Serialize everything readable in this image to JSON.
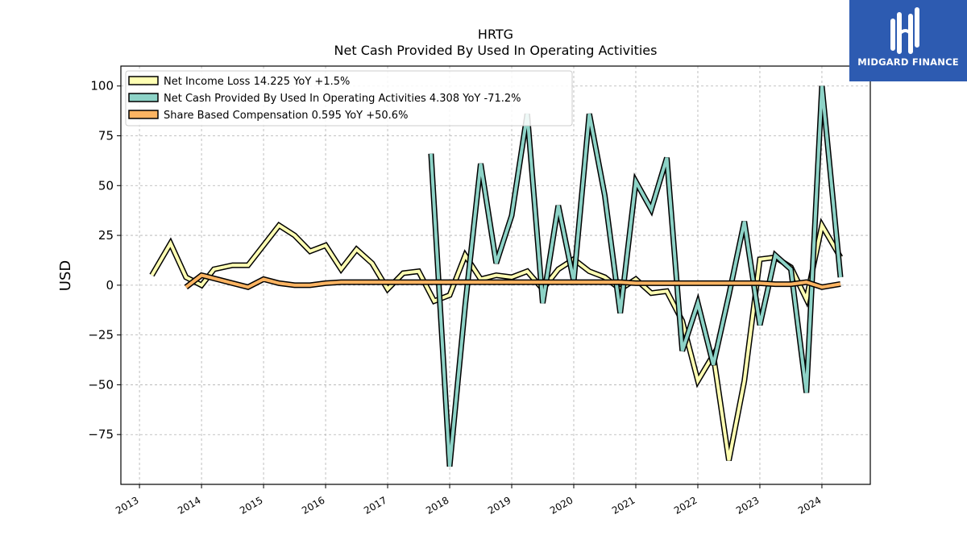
{
  "header": {
    "title": "HRTG",
    "subtitle": "Net Cash Provided By Used In Operating Activities"
  },
  "brand": {
    "name": "MIDGARD FINANCE",
    "icon": "midgard-logo-icon",
    "color": "#2d5bb1"
  },
  "chart_data": {
    "type": "line",
    "title": "HRTG",
    "subtitle": "Net Cash Provided By Used In Operating Activities",
    "xlabel": "",
    "ylabel": "USD",
    "xlim": [
      2012.7,
      2024.78
    ],
    "ylim": [
      -100,
      110
    ],
    "yticks": [
      100,
      75,
      50,
      25,
      0,
      -25,
      -50,
      -75
    ],
    "ytick_labels": [
      "100",
      "75",
      "50",
      "25",
      "0",
      "−25",
      "−50",
      "−75"
    ],
    "xticks": [
      2013,
      2014,
      2015,
      2016,
      2017,
      2018,
      2019,
      2020,
      2021,
      2022,
      2023,
      2024
    ],
    "xtick_labels": [
      "2013",
      "2014",
      "2015",
      "2016",
      "2017",
      "2018",
      "2019",
      "2020",
      "2021",
      "2022",
      "2023",
      "2024"
    ],
    "grid": true,
    "legend_position": "top-left",
    "series": [
      {
        "name": "Net Income Loss",
        "legend_label": "Net Income Loss  14.225 YoY +1.5%",
        "color": "#ffffb3",
        "x": [
          2013.2,
          2013.5,
          2013.75,
          2014.0,
          2014.2,
          2014.5,
          2014.75,
          2015.0,
          2015.25,
          2015.5,
          2015.75,
          2016.0,
          2016.25,
          2016.5,
          2016.75,
          2017.0,
          2017.25,
          2017.5,
          2017.75,
          2018.0,
          2018.25,
          2018.5,
          2018.75,
          2019.0,
          2019.25,
          2019.5,
          2019.75,
          2020.0,
          2020.25,
          2020.5,
          2020.75,
          2021.0,
          2021.25,
          2021.5,
          2021.75,
          2022.0,
          2022.25,
          2022.5,
          2022.75,
          2023.0,
          2023.25,
          2023.5,
          2023.75,
          2024.0,
          2024.3
        ],
        "y": [
          5,
          21,
          4,
          0,
          8,
          10,
          10,
          20,
          30,
          25,
          17,
          20,
          8,
          18,
          11,
          -2,
          6,
          7,
          -8,
          -5,
          15,
          3,
          5,
          4,
          7,
          -2,
          8,
          13,
          7,
          4,
          -2,
          3,
          -4,
          -3,
          -18,
          -48,
          -35,
          -88,
          -48,
          13,
          14,
          9,
          -7,
          30,
          14
        ]
      },
      {
        "name": "Net Cash Provided By Used In Operating Activities",
        "legend_label": "Net Cash Provided By Used In Operating Activities  4.308 YoY -71.2%",
        "color": "#8dd3c7",
        "x": [
          2017.7,
          2018.0,
          2018.25,
          2018.5,
          2018.75,
          2019.0,
          2019.25,
          2019.5,
          2019.75,
          2020.0,
          2020.25,
          2020.5,
          2020.75,
          2021.0,
          2021.25,
          2021.5,
          2021.75,
          2022.0,
          2022.25,
          2022.5,
          2022.75,
          2023.0,
          2023.25,
          2023.5,
          2023.75,
          2024.0,
          2024.3
        ],
        "y": [
          66,
          -91,
          -10,
          61,
          11,
          35,
          86,
          -9,
          40,
          2,
          86,
          45,
          -14,
          52,
          38,
          64,
          -33,
          -9,
          -40,
          -5,
          32,
          -20,
          15,
          8,
          -54,
          100,
          4
        ]
      },
      {
        "name": "Share Based Compensation",
        "legend_label": "Share Based Compensation  0.595 YoY +50.6%",
        "color": "#fdb462",
        "x": [
          2013.75,
          2014.0,
          2014.25,
          2014.5,
          2014.75,
          2015.0,
          2015.25,
          2015.5,
          2015.75,
          2016.0,
          2016.25,
          2016.5,
          2016.75,
          2017.0,
          2017.25,
          2017.5,
          2017.75,
          2018.0,
          2018.25,
          2018.5,
          2018.75,
          2019.0,
          2019.25,
          2019.5,
          2019.75,
          2020.0,
          2020.25,
          2020.5,
          2020.75,
          2021.0,
          2021.25,
          2021.5,
          2021.75,
          2022.0,
          2022.25,
          2022.5,
          2022.75,
          2023.0,
          2023.25,
          2023.5,
          2023.75,
          2024.0,
          2024.3
        ],
        "y": [
          -1,
          5,
          3,
          1,
          -1,
          3,
          1,
          0,
          0,
          1,
          1.5,
          1.5,
          1.5,
          1.5,
          1.5,
          1.5,
          1.5,
          1.5,
          1.5,
          1.5,
          1.5,
          1.5,
          1.5,
          1.5,
          1.5,
          1.5,
          1.5,
          1.5,
          1.5,
          1,
          1,
          1,
          1,
          1,
          1,
          1,
          1,
          1,
          0.5,
          0.5,
          1.5,
          -1,
          0.6
        ]
      }
    ]
  }
}
